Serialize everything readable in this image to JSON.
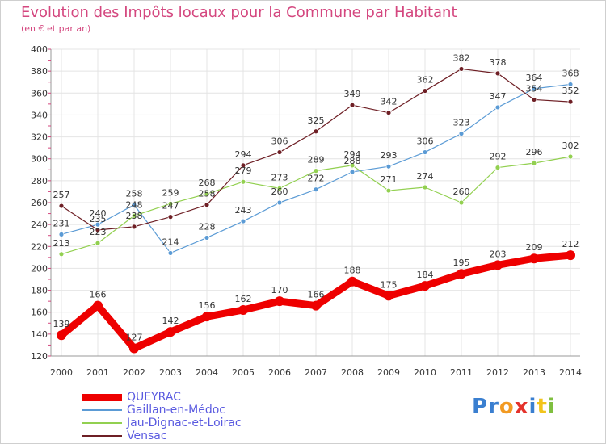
{
  "title": "Evolution des Impôts locaux pour la Commune par Habitant",
  "subtitle": "(en € et par an)",
  "logo": {
    "letters": [
      "P",
      "r",
      "o",
      "x",
      "i",
      "t",
      "i"
    ],
    "colors": [
      "#3a7fd0",
      "#3a7fd0",
      "#f29a22",
      "#e4322b",
      "#3a7fd0",
      "#f2c41c",
      "#7fbf3f"
    ]
  },
  "chart_data": {
    "type": "line",
    "x": [
      "2000",
      "2001",
      "2002",
      "2003",
      "2004",
      "2005",
      "2006",
      "2007",
      "2008",
      "2009",
      "2010",
      "2011",
      "2012",
      "2013",
      "2014"
    ],
    "yticks": [
      "400",
      "380",
      "360",
      "340",
      "320",
      "300",
      "280",
      "260",
      "240",
      "220",
      "200",
      "180",
      "160",
      "140",
      "120"
    ],
    "ylim": [
      120,
      400
    ],
    "grid": true,
    "legend_position": "bottom-left",
    "series": [
      {
        "name": "QUEYRAC",
        "color": "#ee0000",
        "values": [
          139,
          166,
          127,
          142,
          156,
          162,
          170,
          166,
          188,
          175,
          184,
          195,
          203,
          209,
          212
        ],
        "labels": [
          "139",
          "166",
          "127",
          "142",
          "156",
          "162",
          "170",
          "166",
          "188",
          "175",
          "184",
          "195",
          "203",
          "209",
          "212"
        ]
      },
      {
        "name": "Gaillan-en-Médoc",
        "color": "#5b9bd5",
        "values": [
          231,
          240,
          258,
          214,
          228,
          243,
          260,
          272,
          288,
          293,
          306,
          323,
          347,
          364,
          368
        ],
        "labels": [
          "231",
          "240",
          "258",
          "214",
          "228",
          "243",
          "260",
          "272",
          "288",
          "293",
          "306",
          "323",
          "347",
          "364",
          "368"
        ]
      },
      {
        "name": "Jau-Dignac-et-Loirac",
        "color": "#92d050",
        "values": [
          213,
          223,
          248,
          259,
          268,
          279,
          273,
          289,
          294,
          271,
          274,
          260,
          292,
          296,
          302
        ],
        "labels": [
          "213",
          "223",
          "248",
          "259",
          "268",
          "279",
          "273",
          "289",
          "294",
          "271",
          "274",
          "260",
          "292",
          "296",
          "302"
        ]
      },
      {
        "name": "Vensac",
        "color": "#6e1f25",
        "values": [
          257,
          235,
          238,
          247,
          258,
          294,
          306,
          325,
          349,
          342,
          362,
          382,
          378,
          354,
          352
        ],
        "labels": [
          "257",
          "235",
          "238",
          "247",
          "258",
          "294",
          "306",
          "325",
          "349",
          "342",
          "362",
          "382",
          "378",
          "354",
          "352"
        ]
      }
    ]
  }
}
